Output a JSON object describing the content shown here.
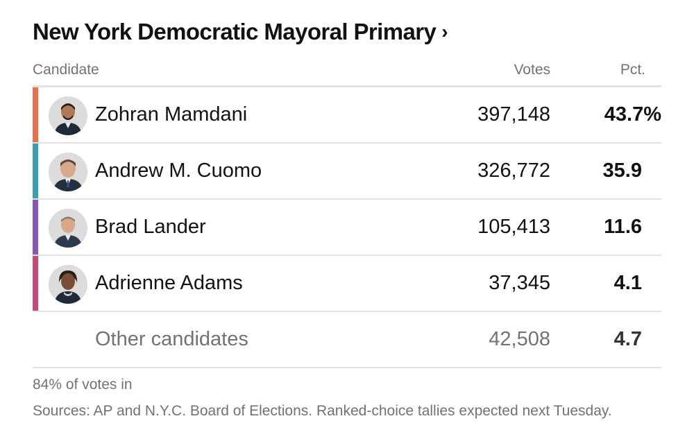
{
  "header": {
    "title": "New York Democratic Mayoral Primary",
    "chevron": "›"
  },
  "table": {
    "columns": {
      "candidate": "Candidate",
      "votes": "Votes",
      "pct": "Pct."
    },
    "rows": [
      {
        "name": "Zohran Mamdani",
        "votes": "397,148",
        "pct": "43.7%",
        "color": "#e8704a",
        "avatar_icon": "candidate-photo"
      },
      {
        "name": "Andrew M. Cuomo",
        "votes": "326,772",
        "pct": "35.9",
        "color": "#3a9fb0",
        "avatar_icon": "candidate-photo"
      },
      {
        "name": "Brad Lander",
        "votes": "105,413",
        "pct": "11.6",
        "color": "#8b55b8",
        "avatar_icon": "candidate-photo"
      },
      {
        "name": "Adrienne Adams",
        "votes": "37,345",
        "pct": "4.1",
        "color": "#c84a78",
        "avatar_icon": "candidate-photo"
      }
    ],
    "other": {
      "name": "Other candidates",
      "votes": "42,508",
      "pct": "4.7"
    }
  },
  "footer": {
    "status": "84% of votes in",
    "sources": "Sources: AP and N.Y.C. Board of Elections. Ranked-choice tallies expected next Tuesday."
  }
}
